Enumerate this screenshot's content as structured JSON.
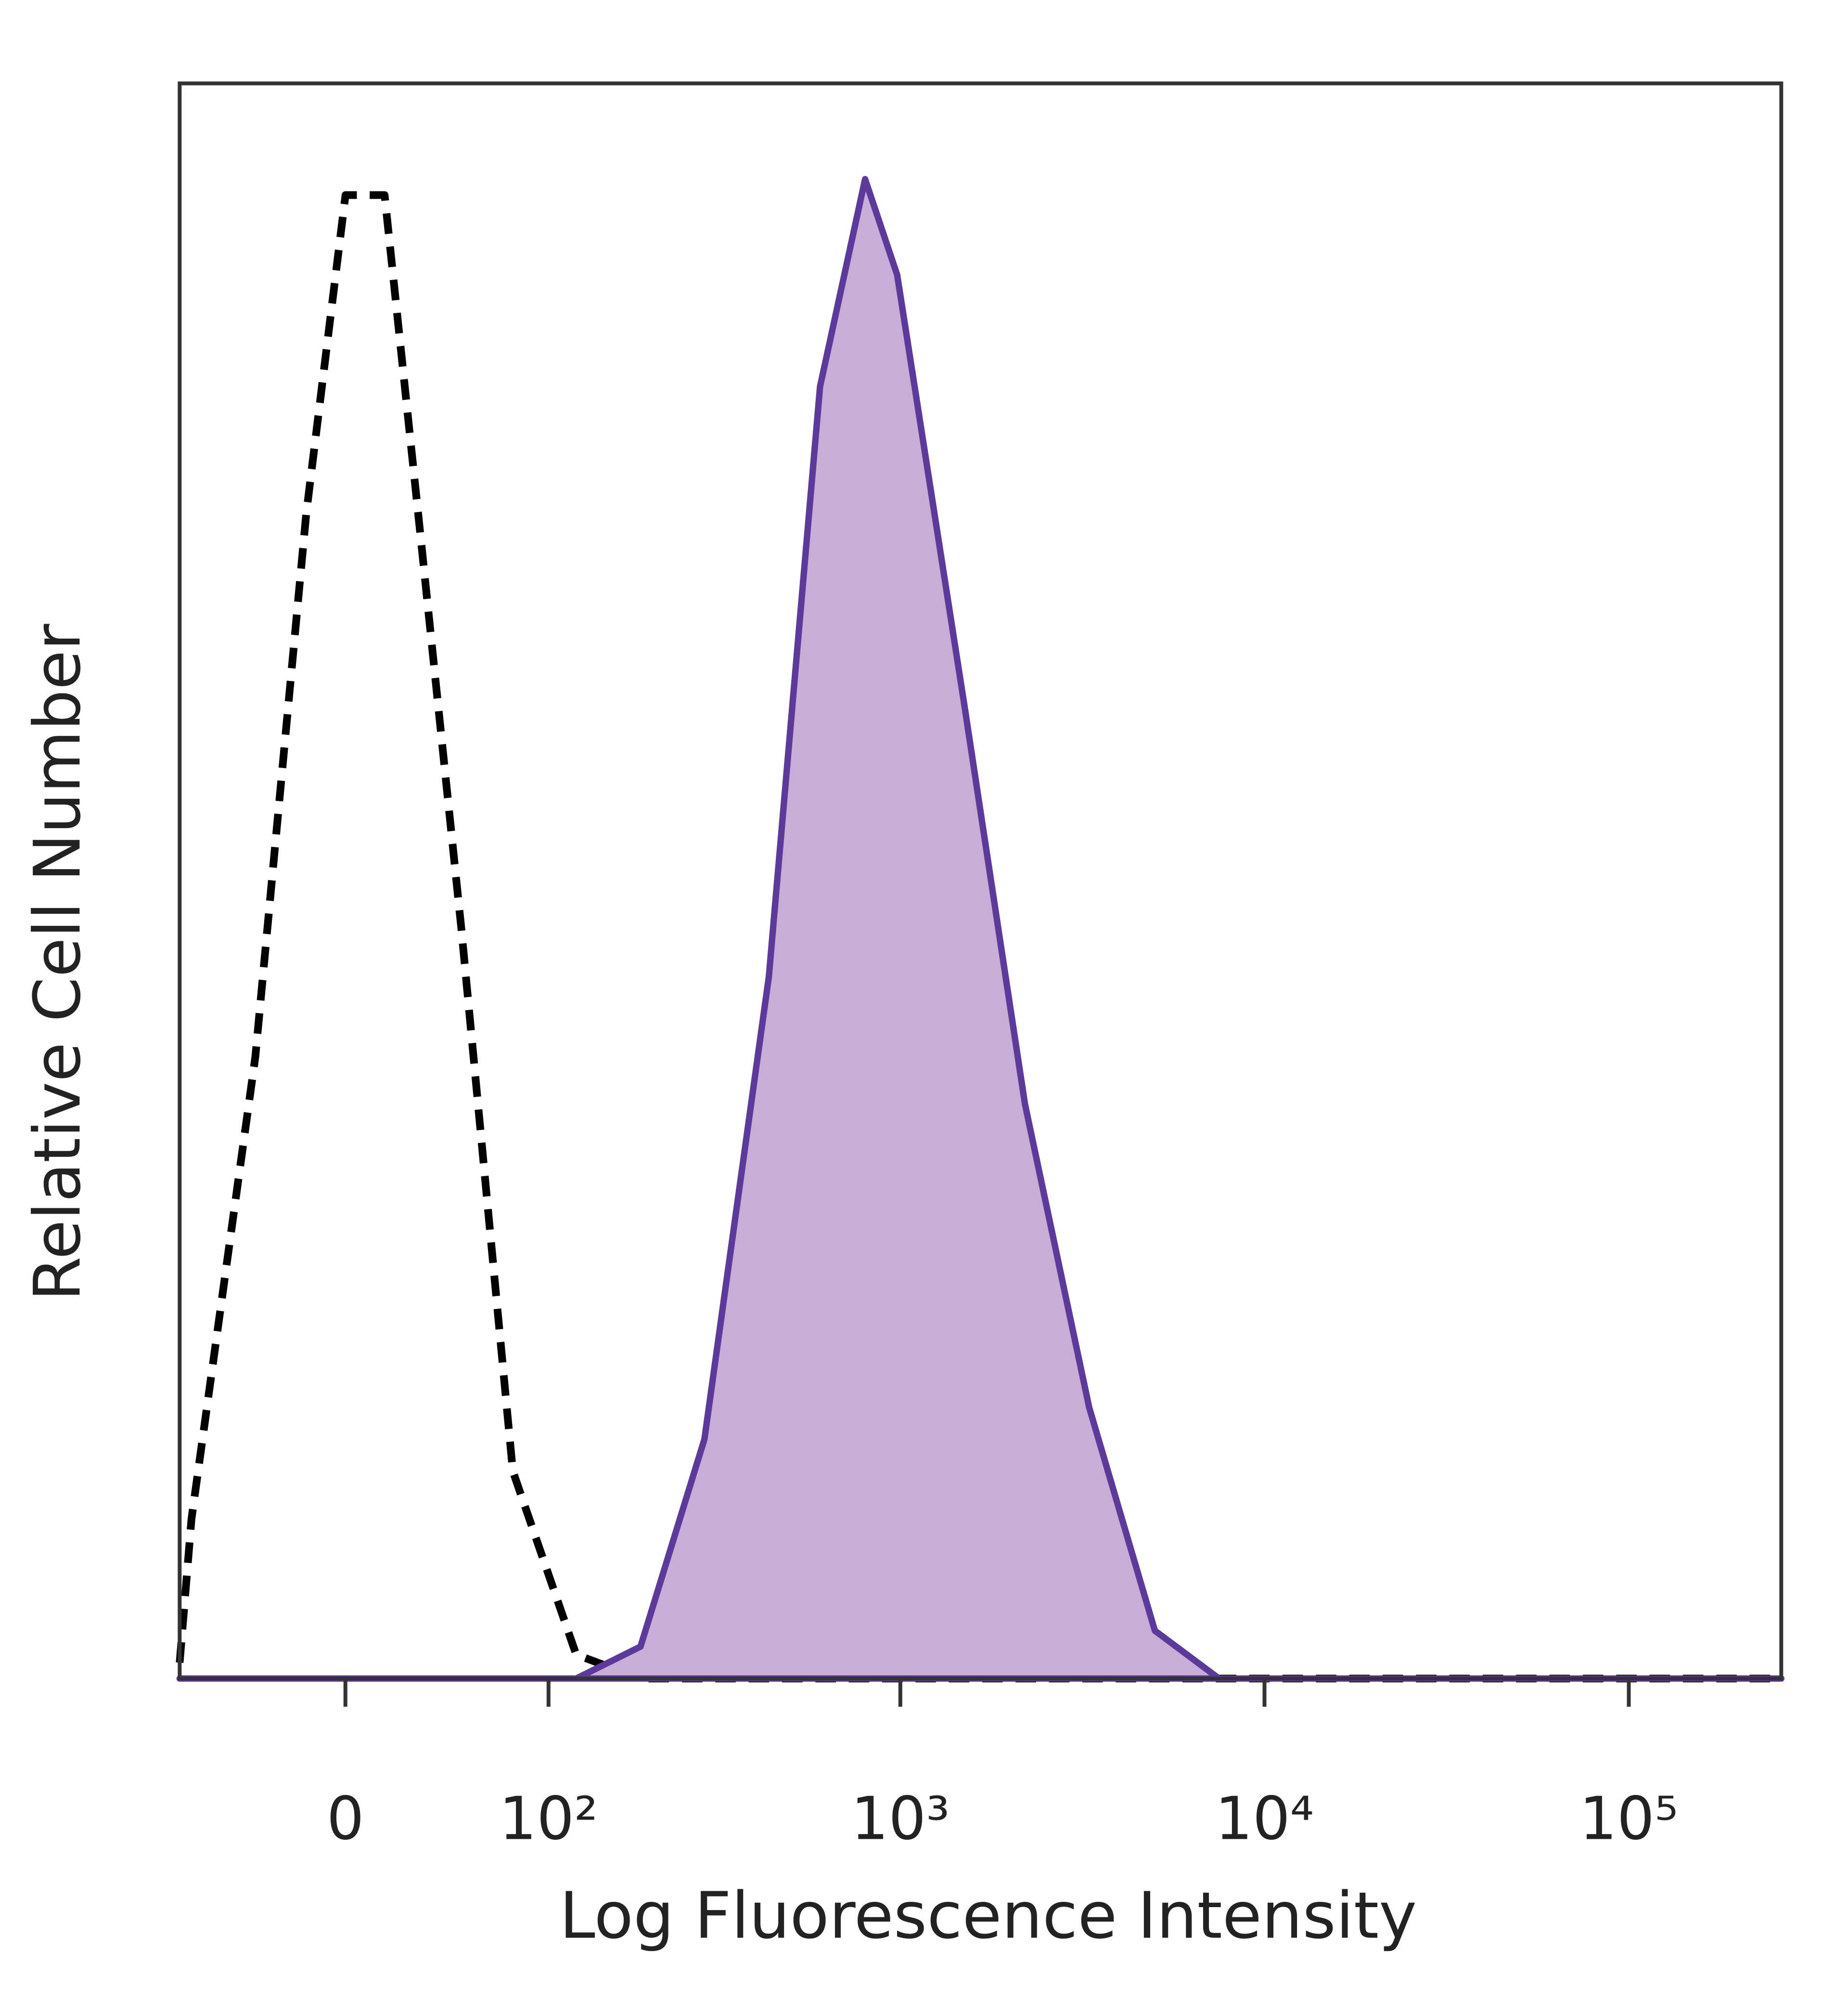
{
  "chart_data": {
    "type": "line",
    "x_label": "Log Fluorescence Intensity",
    "y_label": "Relative Cell Number",
    "x": [
      -75,
      -68,
      -36,
      -15,
      0,
      15,
      30,
      48,
      76,
      122,
      189,
      287,
      434,
      601,
      800,
      980,
      1500,
      2200,
      3300,
      5000,
      7500,
      11000,
      25000,
      57000,
      128000,
      262144
    ],
    "series": [
      {
        "color": "#000000",
        "dashed": true,
        "values": [
          1,
          10,
          39,
          73,
          93,
          93,
          71,
          47,
          13,
          1.5,
          0,
          0,
          0,
          0,
          0,
          0,
          0,
          0,
          0,
          0,
          0,
          0,
          0,
          0,
          0,
          0
        ]
      },
      {
        "color": "#5b3a9c",
        "fill": "#c8aed6",
        "dashed": false,
        "values": [
          0,
          0,
          0,
          0,
          0,
          0,
          0,
          0,
          0,
          0,
          2,
          15,
          44,
          81,
          94,
          88,
          61,
          36,
          17,
          3,
          0,
          0,
          0,
          0,
          0,
          0
        ]
      }
    ],
    "x_scale": "biexponential",
    "xlim": [
      -75,
      262144
    ],
    "ylim": [
      0,
      100
    ],
    "xticks": [
      0,
      {
        "value": 100,
        "label": "10²"
      },
      {
        "value": 1000,
        "label": "10³"
      },
      {
        "value": 10000,
        "label": "10⁴"
      },
      {
        "value": 100000,
        "label": "10⁵"
      }
    ]
  }
}
